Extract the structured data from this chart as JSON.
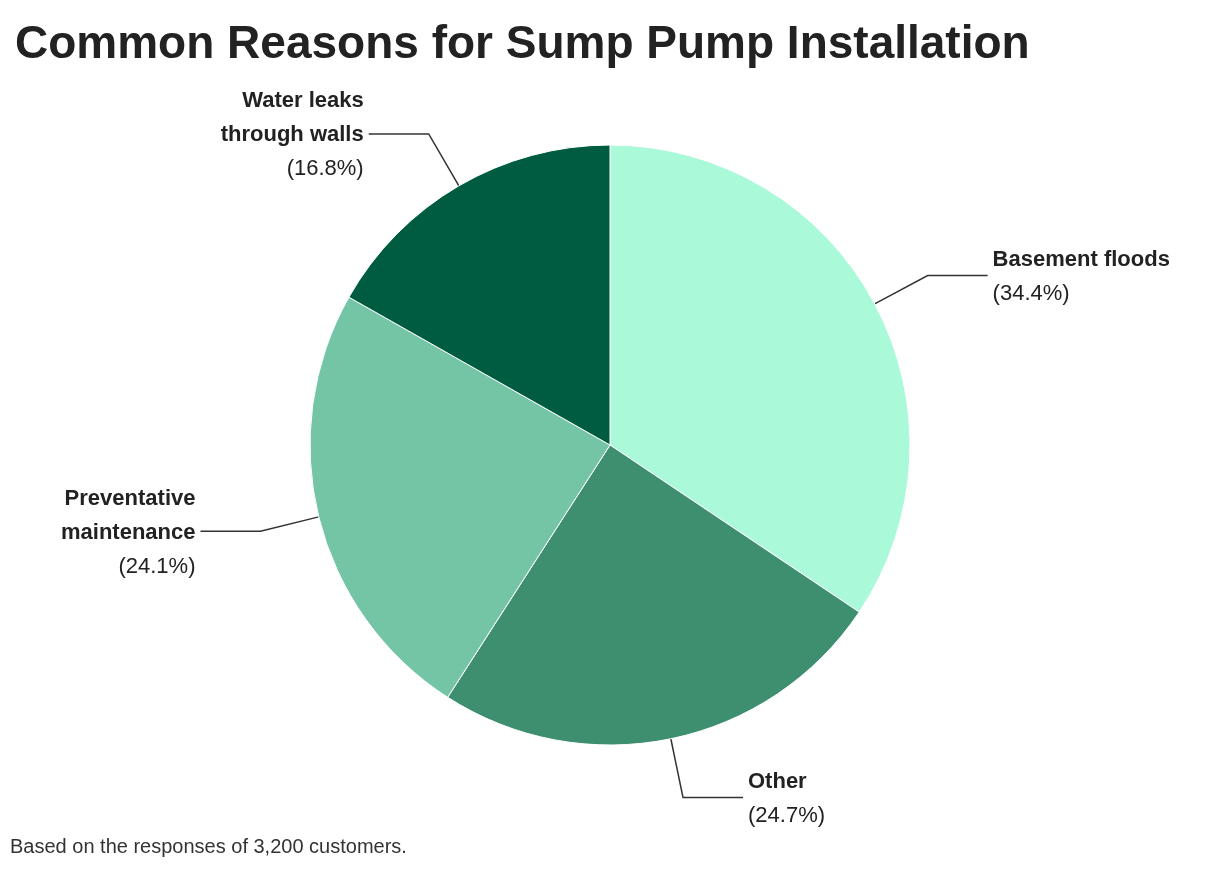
{
  "chart_data": {
    "type": "pie",
    "title": "Common Reasons for Sump Pump Installation",
    "categories": [
      "Basement floods",
      "Other",
      "Preventative maintenance",
      "Water leaks through walls"
    ],
    "values": [
      34.4,
      24.7,
      24.1,
      16.8
    ],
    "colors": [
      "#aaf9d9",
      "#3d8f6f",
      "#74c5a5",
      "#005c40"
    ],
    "value_labels": [
      "(34.4%)",
      "(24.7%)",
      "(24.1%)",
      "(16.8%)"
    ],
    "annotations": [
      "Based on the responses of 3,200 customers."
    ]
  }
}
